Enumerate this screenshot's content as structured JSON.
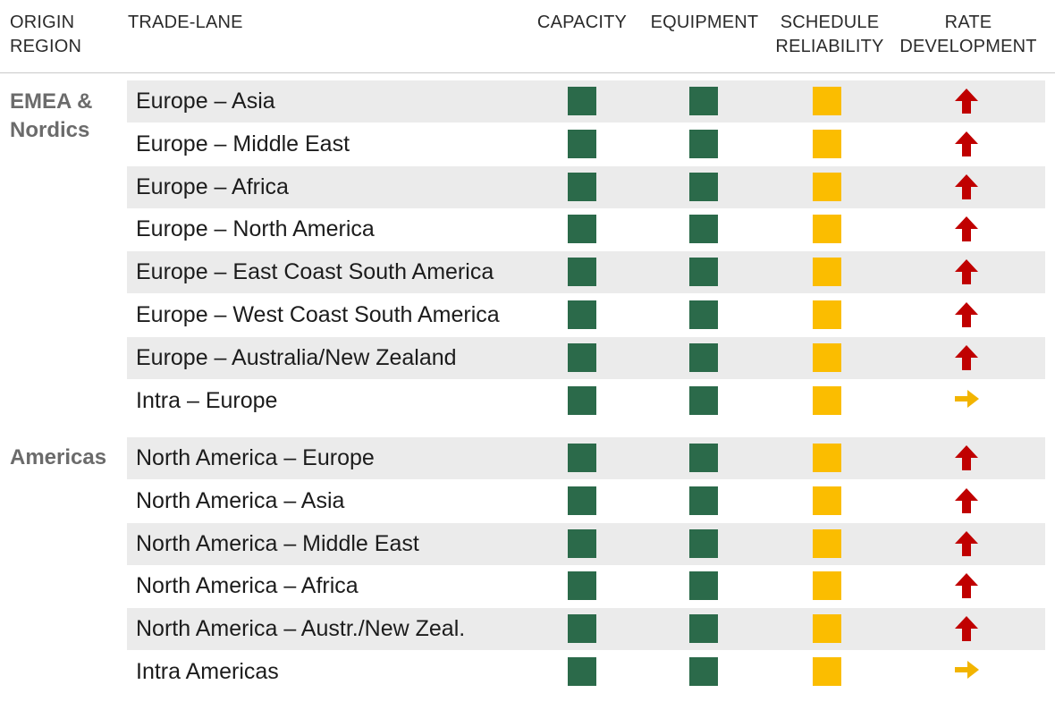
{
  "header": {
    "origin_region": "ORIGIN\nREGION",
    "trade_lane": "TRADE-LANE",
    "capacity": "CAPACITY",
    "equipment": "EQUIPMENT",
    "schedule_reliability": "SCHEDULE\nRELIABILITY",
    "rate_development": "RATE\nDEVELOPMENT"
  },
  "colors": {
    "green": "#2b6a4a",
    "yellow": "#fbbd00",
    "arrow_up": "#c00000",
    "arrow_right": "#f2b400",
    "row_shade": "#ebebeb",
    "region_text": "#6b6b6b"
  },
  "chart_data": {
    "type": "table",
    "columns": [
      "ORIGIN REGION",
      "TRADE-LANE",
      "CAPACITY",
      "EQUIPMENT",
      "SCHEDULE RELIABILITY",
      "RATE DEVELOPMENT"
    ],
    "legend": "none",
    "groups": [
      {
        "region": "EMEA &\nNordics",
        "rows": [
          {
            "lane": "Europe – Asia",
            "capacity": "green",
            "equipment": "green",
            "schedule_reliability": "yellow",
            "rate_development": "up"
          },
          {
            "lane": "Europe – Middle East",
            "capacity": "green",
            "equipment": "green",
            "schedule_reliability": "yellow",
            "rate_development": "up"
          },
          {
            "lane": "Europe – Africa",
            "capacity": "green",
            "equipment": "green",
            "schedule_reliability": "yellow",
            "rate_development": "up"
          },
          {
            "lane": "Europe – North America",
            "capacity": "green",
            "equipment": "green",
            "schedule_reliability": "yellow",
            "rate_development": "up"
          },
          {
            "lane": "Europe – East Coast South America",
            "capacity": "green",
            "equipment": "green",
            "schedule_reliability": "yellow",
            "rate_development": "up"
          },
          {
            "lane": "Europe – West Coast South America",
            "capacity": "green",
            "equipment": "green",
            "schedule_reliability": "yellow",
            "rate_development": "up"
          },
          {
            "lane": "Europe – Australia/New Zealand",
            "capacity": "green",
            "equipment": "green",
            "schedule_reliability": "yellow",
            "rate_development": "up"
          },
          {
            "lane": "Intra – Europe",
            "capacity": "green",
            "equipment": "green",
            "schedule_reliability": "yellow",
            "rate_development": "right"
          }
        ]
      },
      {
        "region": "Americas",
        "rows": [
          {
            "lane": "North America – Europe",
            "capacity": "green",
            "equipment": "green",
            "schedule_reliability": "yellow",
            "rate_development": "up"
          },
          {
            "lane": "North America – Asia",
            "capacity": "green",
            "equipment": "green",
            "schedule_reliability": "yellow",
            "rate_development": "up"
          },
          {
            "lane": "North America – Middle East",
            "capacity": "green",
            "equipment": "green",
            "schedule_reliability": "yellow",
            "rate_development": "up"
          },
          {
            "lane": "North America – Africa",
            "capacity": "green",
            "equipment": "green",
            "schedule_reliability": "yellow",
            "rate_development": "up"
          },
          {
            "lane": "North America – Austr./New Zeal.",
            "capacity": "green",
            "equipment": "green",
            "schedule_reliability": "yellow",
            "rate_development": "up"
          },
          {
            "lane": "Intra Americas",
            "capacity": "green",
            "equipment": "green",
            "schedule_reliability": "yellow",
            "rate_development": "right"
          }
        ]
      }
    ]
  }
}
